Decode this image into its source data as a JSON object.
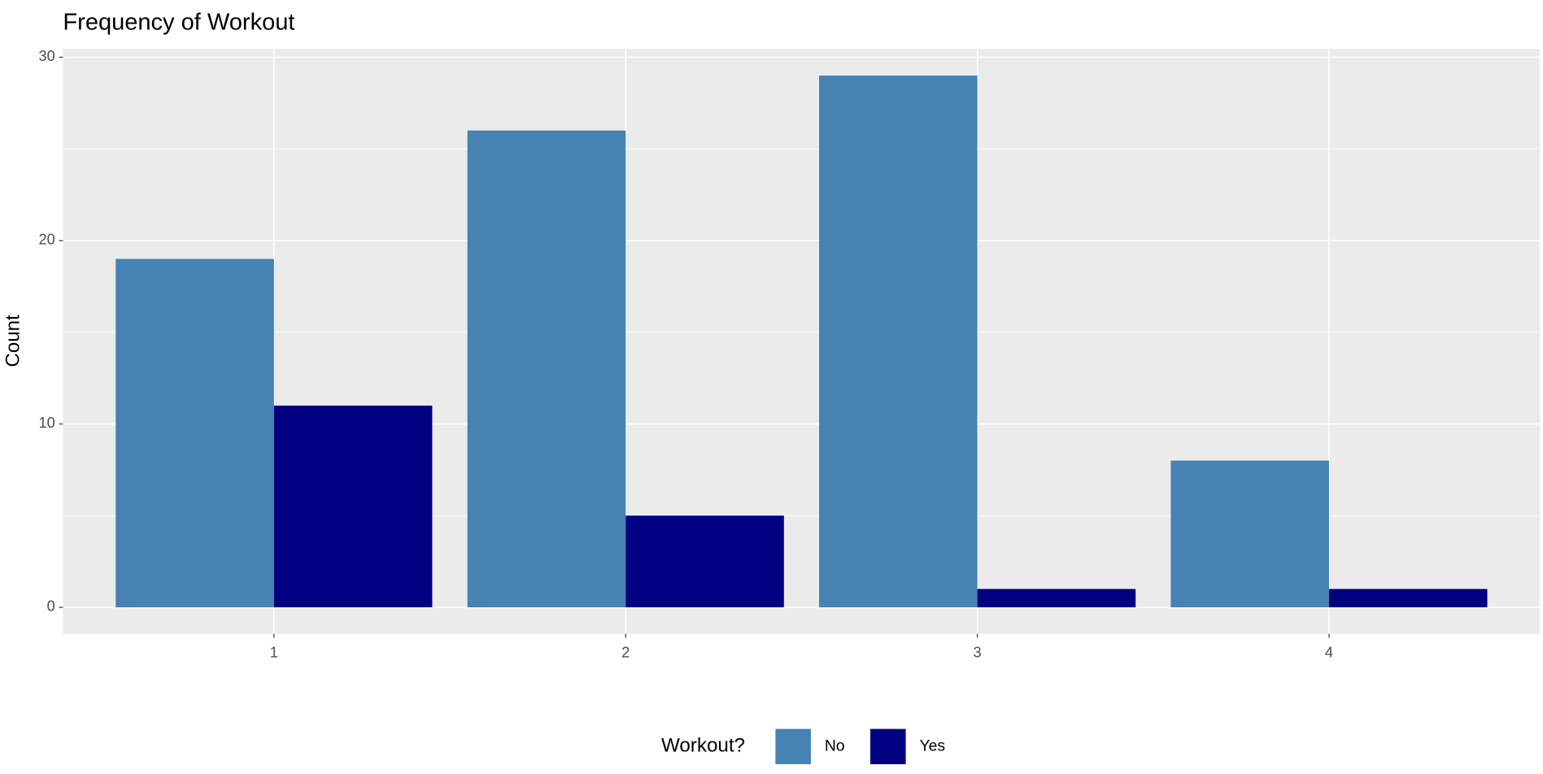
{
  "chart_data": {
    "type": "bar",
    "title": "Frequency of Workout",
    "y_label": "Count",
    "categories": [
      "1",
      "2",
      "3",
      "4"
    ],
    "legend_title": "Workout?",
    "series": [
      {
        "name": "No",
        "color": "#4682b4",
        "values": [
          19,
          26,
          29,
          8
        ]
      },
      {
        "name": "Yes",
        "color": "#000080",
        "values": [
          11,
          5,
          1,
          1
        ]
      }
    ],
    "ylim": [
      -1.45,
      30.45
    ],
    "yticks": [
      0,
      10,
      20,
      30
    ],
    "grid": true,
    "legend": "bottom"
  }
}
